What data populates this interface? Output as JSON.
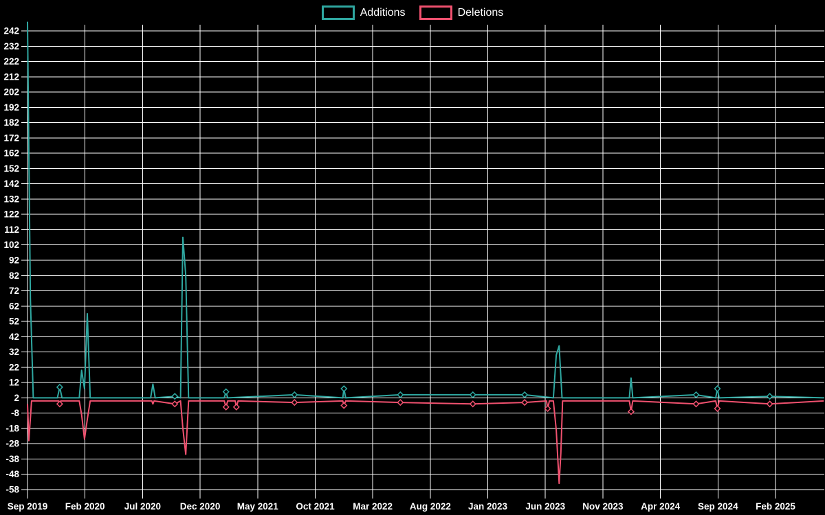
{
  "legend": {
    "additions_label": "Additions",
    "deletions_label": "Deletions"
  },
  "colors": {
    "background": "#000000",
    "grid": "#ffffff",
    "axis_text": "#ffffff",
    "additions": "#2fa8a1",
    "deletions": "#f0516f"
  },
  "chart_data": {
    "type": "line",
    "title": "",
    "xlabel": "",
    "ylabel": "",
    "grid": true,
    "legend_position": "top-center",
    "y_axis": {
      "min": -58,
      "max": 242,
      "step": 10
    },
    "x_axis": {
      "tick_labels": [
        "Sep 2019",
        "Feb 2020",
        "Jul 2020",
        "Dec 2020",
        "May 2021",
        "Oct 2021",
        "Mar 2022",
        "Aug 2022",
        "Jan 2023",
        "Jun 2023",
        "Nov 2023",
        "Apr 2024",
        "Sep 2024",
        "Feb 2025"
      ],
      "tick_t": [
        0,
        5,
        10,
        15,
        20,
        25,
        30,
        35,
        40,
        45,
        50,
        55,
        60,
        65
      ],
      "t_unit": "months-since-first-tick"
    },
    "series": [
      {
        "name": "Additions",
        "color_key": "additions",
        "baseline": 2,
        "points": [
          [
            0,
            248
          ],
          [
            0.25,
            67
          ],
          [
            0.5,
            2
          ],
          [
            2.6,
            2
          ],
          [
            2.8,
            9
          ],
          [
            3.0,
            2
          ],
          [
            4.5,
            2
          ],
          [
            4.7,
            20
          ],
          [
            4.95,
            8
          ],
          [
            5.2,
            57
          ],
          [
            5.45,
            2
          ],
          [
            10.7,
            2
          ],
          [
            10.9,
            11
          ],
          [
            11.1,
            2
          ],
          [
            12.8,
            3
          ],
          [
            13.3,
            2
          ],
          [
            13.5,
            107
          ],
          [
            13.75,
            82
          ],
          [
            14.0,
            2
          ],
          [
            17.1,
            2
          ],
          [
            17.25,
            6
          ],
          [
            17.4,
            2
          ],
          [
            23.2,
            4
          ],
          [
            27.4,
            2
          ],
          [
            27.5,
            8
          ],
          [
            27.65,
            2
          ],
          [
            32.4,
            4
          ],
          [
            38.7,
            4
          ],
          [
            43.2,
            4
          ],
          [
            45.7,
            2
          ],
          [
            45.95,
            30
          ],
          [
            46.2,
            36
          ],
          [
            46.45,
            2
          ],
          [
            52.3,
            2
          ],
          [
            52.45,
            15
          ],
          [
            52.6,
            2
          ],
          [
            58.1,
            4
          ],
          [
            59.8,
            2
          ],
          [
            59.95,
            8
          ],
          [
            60.1,
            2
          ],
          [
            64.5,
            3
          ],
          [
            69.2,
            2
          ]
        ],
        "marker_t": [
          2.8,
          12.8,
          17.25,
          23.2,
          27.5,
          32.4,
          38.7,
          43.2,
          58.1,
          59.95,
          64.5
        ]
      },
      {
        "name": "Deletions",
        "color_key": "deletions",
        "baseline": 0,
        "points": [
          [
            0,
            -2
          ],
          [
            0.12,
            -26
          ],
          [
            0.35,
            0
          ],
          [
            2.7,
            0
          ],
          [
            2.8,
            -2
          ],
          [
            2.9,
            0
          ],
          [
            4.5,
            0
          ],
          [
            4.7,
            -9
          ],
          [
            4.95,
            -25
          ],
          [
            5.2,
            -12
          ],
          [
            5.45,
            0
          ],
          [
            10.8,
            0
          ],
          [
            10.9,
            -2
          ],
          [
            11.0,
            0
          ],
          [
            12.8,
            -2
          ],
          [
            13.3,
            0
          ],
          [
            13.5,
            -18
          ],
          [
            13.75,
            -35
          ],
          [
            14.0,
            0
          ],
          [
            17.1,
            0
          ],
          [
            17.25,
            -4
          ],
          [
            17.4,
            0
          ],
          [
            18.05,
            0
          ],
          [
            18.15,
            -4
          ],
          [
            18.3,
            0
          ],
          [
            23.2,
            -1
          ],
          [
            27.4,
            0
          ],
          [
            27.5,
            -3
          ],
          [
            27.65,
            0
          ],
          [
            32.4,
            -1
          ],
          [
            38.7,
            -2
          ],
          [
            43.2,
            -1
          ],
          [
            45.1,
            0
          ],
          [
            45.2,
            -5
          ],
          [
            45.35,
            0
          ],
          [
            45.7,
            0
          ],
          [
            45.95,
            -19
          ],
          [
            46.2,
            -54
          ],
          [
            46.35,
            -34
          ],
          [
            46.5,
            0
          ],
          [
            52.3,
            0
          ],
          [
            52.45,
            -7
          ],
          [
            52.6,
            0
          ],
          [
            58.1,
            -2
          ],
          [
            59.8,
            0
          ],
          [
            59.95,
            -5
          ],
          [
            60.1,
            0
          ],
          [
            64.5,
            -2
          ],
          [
            69.2,
            0
          ]
        ],
        "marker_t": [
          2.8,
          12.8,
          17.25,
          18.15,
          23.2,
          27.5,
          32.4,
          38.7,
          43.2,
          45.2,
          52.45,
          58.1,
          59.95,
          64.5
        ]
      }
    ]
  }
}
